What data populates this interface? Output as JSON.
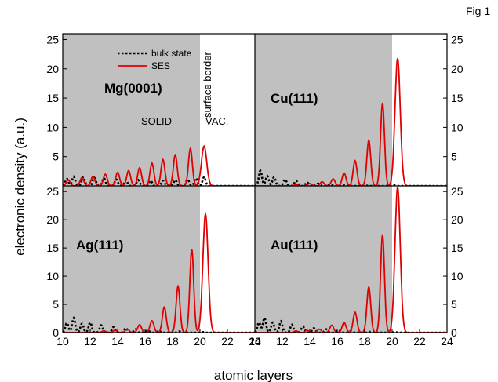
{
  "fig_label": "Fig 1",
  "chart_data": {
    "type": "line",
    "xlabel": "atomic layers",
    "ylabel": "electronic density (a.u.)",
    "xlim": [
      10,
      24
    ],
    "ylim": [
      0,
      26
    ],
    "x_ticks": [
      "10",
      "12",
      "14",
      "16",
      "18",
      "20",
      "22",
      "24"
    ],
    "y_ticks": [
      "5",
      "10",
      "15",
      "20",
      "25"
    ],
    "y_ticks_bottom": [
      "0",
      "5",
      "10",
      "15",
      "20",
      "25"
    ],
    "legend": {
      "placement": "top-left",
      "entries": [
        {
          "label": "bulk state",
          "style": "dotted",
          "color": "#000000"
        },
        {
          "label": "SES",
          "style": "solid",
          "color": "#e00000"
        }
      ]
    },
    "solid_region_color": "#c0c0c0",
    "bulk_color": "#000000",
    "ses_color": "#e00000",
    "panels": [
      {
        "id": "mg",
        "position": "top-left",
        "label": "Mg(0001)",
        "surface_border": 20.0,
        "annotations": {
          "solid": "SOLID",
          "vacuum": "VAC.",
          "border": "surface border"
        },
        "ses_peaks": [
          {
            "x": 10.4,
            "y": 1.0
          },
          {
            "x": 11.4,
            "y": 1.4
          },
          {
            "x": 12.2,
            "y": 1.6
          },
          {
            "x": 13.1,
            "y": 2.0
          },
          {
            "x": 14.0,
            "y": 2.3
          },
          {
            "x": 14.8,
            "y": 2.6
          },
          {
            "x": 15.6,
            "y": 3.1
          },
          {
            "x": 16.5,
            "y": 3.9
          },
          {
            "x": 17.3,
            "y": 4.5
          },
          {
            "x": 18.2,
            "y": 5.3
          },
          {
            "x": 19.3,
            "y": 6.4
          },
          {
            "x": 20.3,
            "y": 6.8
          }
        ],
        "bulk_peaks": [
          {
            "x": 10.3,
            "y": 1.2
          },
          {
            "x": 10.8,
            "y": 1.6
          },
          {
            "x": 11.5,
            "y": 1.5
          },
          {
            "x": 12.3,
            "y": 1.4
          },
          {
            "x": 13.0,
            "y": 1.3
          },
          {
            "x": 13.9,
            "y": 1.1
          },
          {
            "x": 14.6,
            "y": 1.0
          },
          {
            "x": 15.5,
            "y": 1.0
          },
          {
            "x": 16.4,
            "y": 0.9
          },
          {
            "x": 17.3,
            "y": 0.9
          },
          {
            "x": 18.2,
            "y": 1.0
          },
          {
            "x": 19.1,
            "y": 1.1
          },
          {
            "x": 19.7,
            "y": 1.3
          },
          {
            "x": 20.3,
            "y": 1.5
          }
        ]
      },
      {
        "id": "cu",
        "position": "top-right",
        "label": "Cu(111)",
        "surface_border": 20.0,
        "ses_peaks": [
          {
            "x": 13.0,
            "y": 0.2
          },
          {
            "x": 14.0,
            "y": 0.4
          },
          {
            "x": 14.9,
            "y": 0.7
          },
          {
            "x": 15.7,
            "y": 1.2
          },
          {
            "x": 16.5,
            "y": 2.2
          },
          {
            "x": 17.3,
            "y": 4.3
          },
          {
            "x": 18.3,
            "y": 7.8
          },
          {
            "x": 19.3,
            "y": 14.2
          },
          {
            "x": 20.4,
            "y": 21.8
          }
        ],
        "bulk_peaks": [
          {
            "x": 10.4,
            "y": 2.6
          },
          {
            "x": 10.9,
            "y": 1.7
          },
          {
            "x": 11.4,
            "y": 1.5
          },
          {
            "x": 12.2,
            "y": 1.1
          },
          {
            "x": 13.0,
            "y": 0.9
          },
          {
            "x": 13.8,
            "y": 0.6
          },
          {
            "x": 14.6,
            "y": 0.4
          },
          {
            "x": 15.5,
            "y": 0.3
          },
          {
            "x": 16.4,
            "y": 0.2
          },
          {
            "x": 18.0,
            "y": 0.1
          },
          {
            "x": 20.2,
            "y": 0.1
          }
        ]
      },
      {
        "id": "ag",
        "position": "bottom-left",
        "label": "Ag(111)",
        "surface_border": 20.0,
        "ses_peaks": [
          {
            "x": 13.0,
            "y": 0.3
          },
          {
            "x": 13.8,
            "y": 0.4
          },
          {
            "x": 14.7,
            "y": 0.6
          },
          {
            "x": 15.6,
            "y": 1.4
          },
          {
            "x": 16.5,
            "y": 2.1
          },
          {
            "x": 17.4,
            "y": 4.5
          },
          {
            "x": 18.4,
            "y": 8.2
          },
          {
            "x": 19.4,
            "y": 14.8
          },
          {
            "x": 20.4,
            "y": 21.0
          }
        ],
        "bulk_peaks": [
          {
            "x": 10.3,
            "y": 1.7
          },
          {
            "x": 10.8,
            "y": 2.6
          },
          {
            "x": 11.4,
            "y": 1.6
          },
          {
            "x": 12.0,
            "y": 1.8
          },
          {
            "x": 12.8,
            "y": 1.3
          },
          {
            "x": 13.7,
            "y": 1.0
          },
          {
            "x": 14.6,
            "y": 0.8
          },
          {
            "x": 15.3,
            "y": 0.6
          },
          {
            "x": 16.2,
            "y": 0.4
          },
          {
            "x": 17.0,
            "y": 0.3
          },
          {
            "x": 18.5,
            "y": 0.2
          },
          {
            "x": 20.2,
            "y": 0.1
          }
        ]
      },
      {
        "id": "au",
        "position": "bottom-right",
        "label": "Au(111)",
        "surface_border": 20.0,
        "ses_peaks": [
          {
            "x": 13.0,
            "y": 0.3
          },
          {
            "x": 13.8,
            "y": 0.4
          },
          {
            "x": 14.7,
            "y": 0.6
          },
          {
            "x": 15.6,
            "y": 1.3
          },
          {
            "x": 16.5,
            "y": 1.8
          },
          {
            "x": 17.3,
            "y": 3.6
          },
          {
            "x": 18.3,
            "y": 8.1
          },
          {
            "x": 19.3,
            "y": 17.4
          },
          {
            "x": 20.4,
            "y": 25.8
          }
        ],
        "bulk_peaks": [
          {
            "x": 10.3,
            "y": 1.8
          },
          {
            "x": 10.7,
            "y": 2.6
          },
          {
            "x": 11.3,
            "y": 1.8
          },
          {
            "x": 11.9,
            "y": 2.0
          },
          {
            "x": 12.7,
            "y": 1.4
          },
          {
            "x": 13.5,
            "y": 1.1
          },
          {
            "x": 14.3,
            "y": 0.8
          },
          {
            "x": 15.2,
            "y": 0.6
          },
          {
            "x": 16.1,
            "y": 0.4
          },
          {
            "x": 17.0,
            "y": 0.3
          },
          {
            "x": 18.5,
            "y": 0.2
          },
          {
            "x": 20.2,
            "y": 0.1
          }
        ]
      }
    ]
  }
}
